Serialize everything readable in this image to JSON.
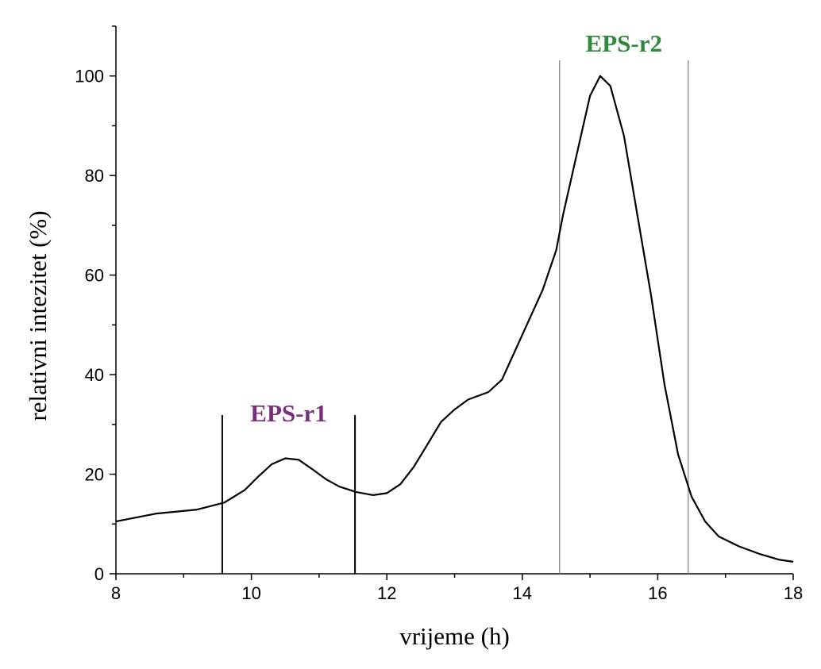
{
  "chart_data": {
    "type": "line",
    "xlabel": "vrijeme (h)",
    "ylabel": "relativni intezitet (%)",
    "xlim": [
      8,
      18
    ],
    "ylim": [
      0,
      110
    ],
    "x_ticks": [
      8,
      10,
      12,
      14,
      16,
      18
    ],
    "y_ticks": [
      0,
      20,
      40,
      60,
      80,
      100
    ],
    "grid": false,
    "series": [
      {
        "color": "#000000",
        "points": [
          [
            8.0,
            10.5
          ],
          [
            8.3,
            11.3
          ],
          [
            8.6,
            12.1
          ],
          [
            8.9,
            12.5
          ],
          [
            9.2,
            12.9
          ],
          [
            9.6,
            14.3
          ],
          [
            9.9,
            16.8
          ],
          [
            10.1,
            19.5
          ],
          [
            10.3,
            22.0
          ],
          [
            10.5,
            23.2
          ],
          [
            10.7,
            22.9
          ],
          [
            10.9,
            21.0
          ],
          [
            11.1,
            19.0
          ],
          [
            11.3,
            17.5
          ],
          [
            11.55,
            16.4
          ],
          [
            11.8,
            15.8
          ],
          [
            12.0,
            16.2
          ],
          [
            12.2,
            18.0
          ],
          [
            12.4,
            21.5
          ],
          [
            12.6,
            26.0
          ],
          [
            12.8,
            30.5
          ],
          [
            13.0,
            33.0
          ],
          [
            13.2,
            35.0
          ],
          [
            13.5,
            36.5
          ],
          [
            13.7,
            39.0
          ],
          [
            14.0,
            48.0
          ],
          [
            14.3,
            57.0
          ],
          [
            14.5,
            65.0
          ],
          [
            14.6,
            72.0
          ],
          [
            14.8,
            84.0
          ],
          [
            15.0,
            96.0
          ],
          [
            15.15,
            100.0
          ],
          [
            15.3,
            98.0
          ],
          [
            15.5,
            88.0
          ],
          [
            15.7,
            72.0
          ],
          [
            15.9,
            56.0
          ],
          [
            16.1,
            38.0
          ],
          [
            16.3,
            24.0
          ],
          [
            16.5,
            15.5
          ],
          [
            16.7,
            10.5
          ],
          [
            16.9,
            7.5
          ],
          [
            17.2,
            5.5
          ],
          [
            17.5,
            4.0
          ],
          [
            17.8,
            2.8
          ],
          [
            18.0,
            2.4
          ]
        ]
      }
    ],
    "regions": [
      {
        "label": "EPS-r1",
        "x_start": 9.57,
        "x_end": 11.53,
        "color": "#7a2e7a",
        "line_color": "#000000"
      },
      {
        "label": "EPS-r2",
        "x_start": 14.55,
        "x_end": 16.45,
        "color": "#2e8a3a",
        "line_color": "#808080"
      }
    ]
  }
}
